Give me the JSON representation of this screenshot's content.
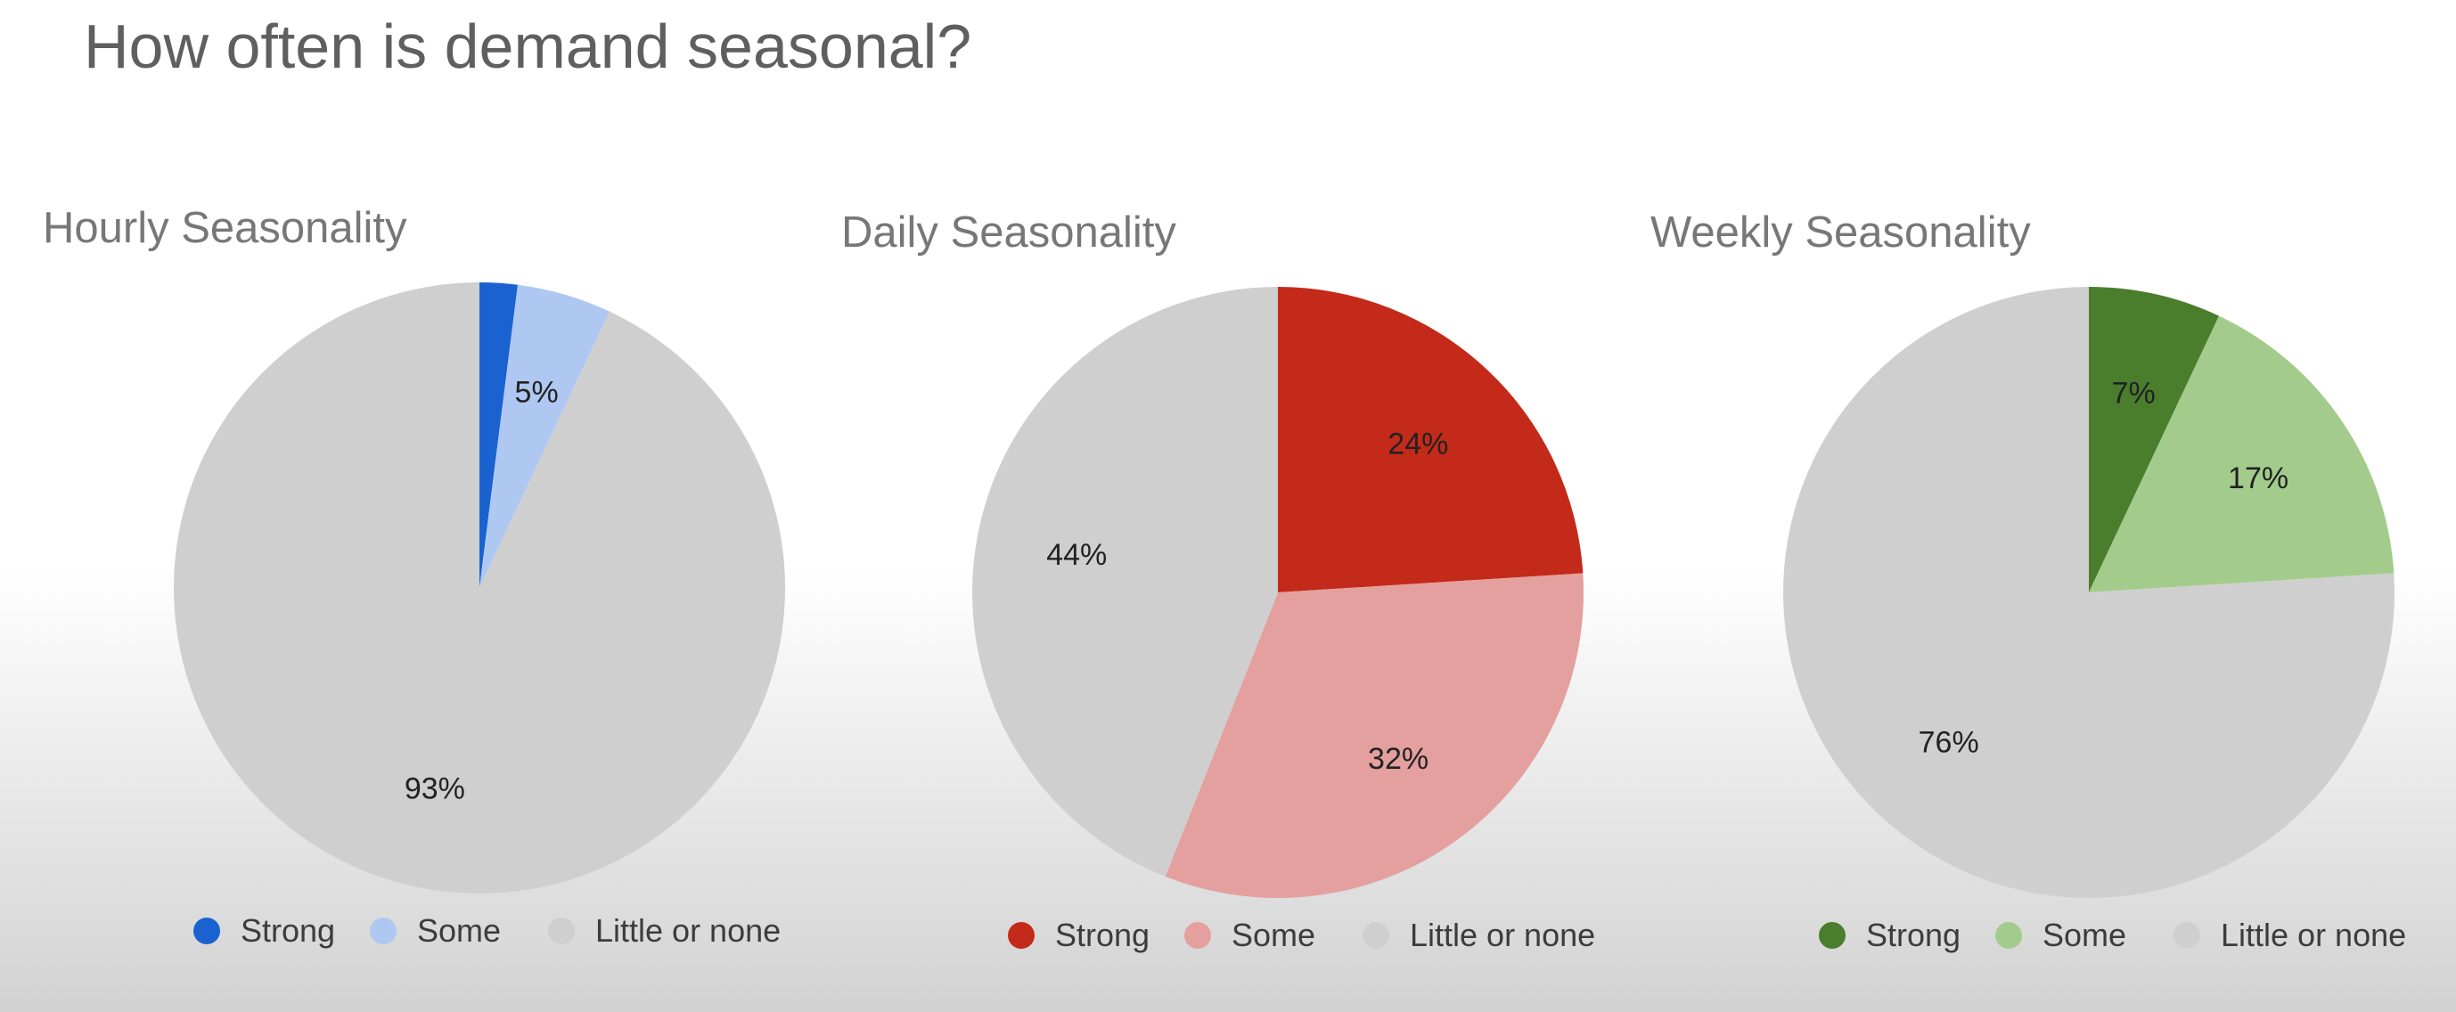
{
  "page": {
    "title": "How often is demand seasonal?"
  },
  "chart_data": [
    {
      "type": "pie",
      "title": "Hourly Seasonality",
      "categories": [
        "Strong",
        "Some",
        "Little or none"
      ],
      "values": [
        2,
        5,
        93
      ],
      "labels": [
        "",
        "5%",
        "93%"
      ],
      "colors": [
        "#1a62cf",
        "#aec8f2",
        "#cfcfcf"
      ],
      "legend": "bottom"
    },
    {
      "type": "pie",
      "title": "Daily Seasonality",
      "categories": [
        "Strong",
        "Some",
        "Little or none"
      ],
      "values": [
        24,
        32,
        44
      ],
      "labels": [
        "24%",
        "32%",
        "44%"
      ],
      "colors": [
        "#c32a19",
        "#e4a09e",
        "#cfcfcf"
      ],
      "legend": "bottom"
    },
    {
      "type": "pie",
      "title": "Weekly Seasonality",
      "categories": [
        "Strong",
        "Some",
        "Little or none"
      ],
      "values": [
        7,
        17,
        76
      ],
      "labels": [
        "7%",
        "17%",
        "76%"
      ],
      "colors": [
        "#4a7e2c",
        "#a3cc8c",
        "#cfcfcf"
      ],
      "legend": "bottom"
    }
  ]
}
